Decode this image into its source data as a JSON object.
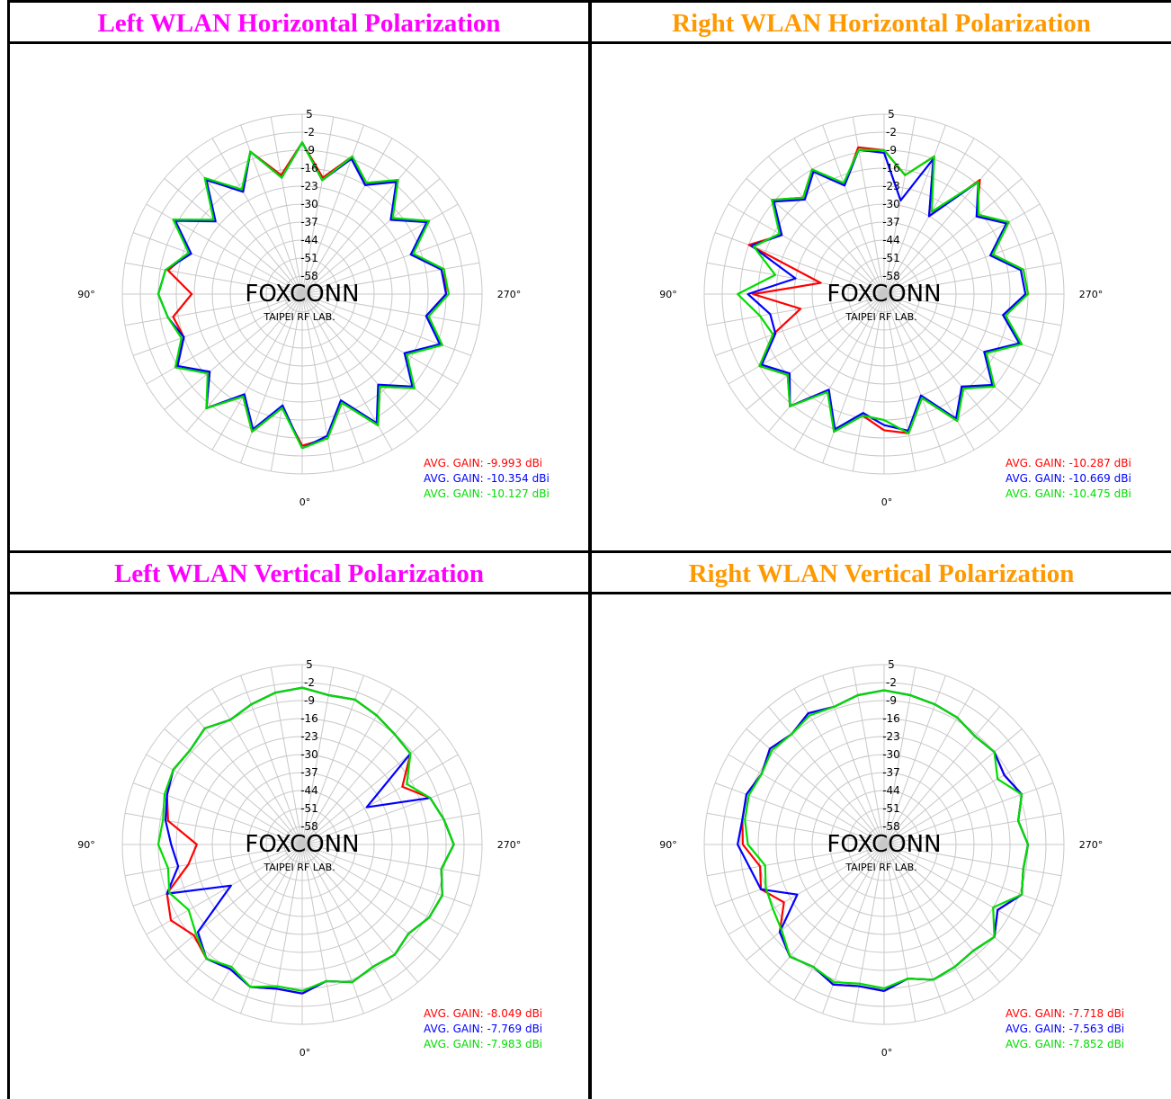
{
  "page": {
    "title_color_left": "#ff00ff",
    "title_color_right": "#ff9900"
  },
  "chart_data": [
    {
      "type": "polar-line",
      "title": "Left WLAN Horizontal Polarization",
      "radial_ticks": [
        "5",
        "-2",
        "-9",
        "-16",
        "-23",
        "-30",
        "-37",
        "-44",
        "-51",
        "-58"
      ],
      "angle_labels": {
        "bottom": "0°",
        "left": "90°",
        "right": "270°"
      },
      "watermark": {
        "main": "FOXCONN",
        "sub": "TAIPEI RF LAB."
      },
      "rlim": [
        -65,
        5
      ],
      "series": [
        {
          "color": "#ff0000",
          "avg_label": "AVG. GAIN: -9.993 dBi",
          "angles": [
            0,
            10,
            20,
            30,
            40,
            50,
            60,
            70,
            80,
            90,
            100,
            110,
            120,
            130,
            140,
            150,
            160,
            170,
            180,
            190,
            200,
            210,
            220,
            230,
            240,
            250,
            260,
            270,
            280,
            290,
            300,
            310,
            320,
            330,
            340,
            350
          ],
          "values": [
            -6,
            -20,
            -8,
            -19,
            -7,
            -18,
            -8,
            -16,
            -14,
            -22,
            -12,
            -18,
            -8,
            -20,
            -7,
            -19,
            -6,
            -18,
            -6,
            -19,
            -8,
            -16,
            -7,
            -20,
            -8,
            -20,
            -9,
            -9,
            -16,
            -7,
            -19,
            -8,
            -18,
            -6,
            -20,
            -8
          ]
        },
        {
          "color": "#0000ff",
          "avg_label": "AVG. GAIN: -10.354 dBi",
          "angles": [
            0,
            10,
            20,
            30,
            40,
            50,
            60,
            70,
            80,
            90,
            100,
            110,
            120,
            130,
            140,
            150,
            160,
            170,
            180,
            190,
            200,
            210,
            220,
            230,
            240,
            250,
            260,
            270,
            280,
            290,
            300,
            310,
            320,
            330,
            340,
            350
          ],
          "values": [
            -5,
            -21,
            -9,
            -20,
            -7,
            -18,
            -9,
            -16,
            -12,
            -9,
            -11,
            -19,
            -8,
            -21,
            -7,
            -19,
            -6,
            -19,
            -6,
            -20,
            -9,
            -16,
            -8,
            -20,
            -9,
            -20,
            -10,
            -9,
            -16,
            -8,
            -19,
            -9,
            -19,
            -7,
            -21,
            -9
          ]
        },
        {
          "color": "#00dd00",
          "avg_label": "AVG. GAIN: -10.127 dBi",
          "angles": [
            0,
            10,
            20,
            30,
            40,
            50,
            60,
            70,
            80,
            90,
            100,
            110,
            120,
            130,
            140,
            150,
            160,
            170,
            180,
            190,
            200,
            210,
            220,
            230,
            240,
            250,
            260,
            270,
            280,
            290,
            300,
            310,
            320,
            330,
            340,
            350
          ],
          "values": [
            -5,
            -20,
            -8,
            -19,
            -7,
            -17,
            -8,
            -15,
            -12,
            -9,
            -11,
            -18,
            -7,
            -20,
            -6,
            -18,
            -6,
            -19,
            -6,
            -20,
            -8,
            -15,
            -7,
            -19,
            -8,
            -19,
            -9,
            -8,
            -15,
            -7,
            -18,
            -8,
            -18,
            -6,
            -20,
            -8
          ]
        }
      ]
    },
    {
      "type": "polar-line",
      "title": "Right WLAN Horizontal Polarization",
      "radial_ticks": [
        "5",
        "-2",
        "-9",
        "-16",
        "-23",
        "-30",
        "-37",
        "-44",
        "-51",
        "-58"
      ],
      "angle_labels": {
        "bottom": "0°",
        "left": "90°",
        "right": "270°"
      },
      "watermark": {
        "main": "FOXCONN",
        "sub": "TAIPEI RF LAB."
      },
      "rlim": [
        -65,
        5
      ],
      "series": [
        {
          "color": "#ff0000",
          "avg_label": "AVG. GAIN: -10.287 dBi",
          "angles": [
            0,
            10,
            20,
            30,
            40,
            50,
            60,
            70,
            80,
            90,
            100,
            110,
            120,
            130,
            140,
            150,
            160,
            170,
            180,
            190,
            200,
            210,
            220,
            230,
            240,
            250,
            260,
            270,
            280,
            290,
            300,
            310,
            320,
            330,
            340,
            350
          ],
          "values": [
            -12,
            -17,
            -8,
            -22,
            -8,
            -16,
            -9,
            -19,
            -32,
            -14,
            -40,
            -9,
            -19,
            -8,
            -16,
            -9,
            -20,
            -7,
            -9,
            -18,
            -8,
            -30,
            -7,
            -18,
            -9,
            -20,
            -10,
            -9,
            -18,
            -8,
            -20,
            -9,
            -18,
            -8,
            -22,
            -10
          ]
        },
        {
          "color": "#0000ff",
          "avg_label": "AVG. GAIN: -10.669 dBi",
          "angles": [
            0,
            10,
            20,
            30,
            40,
            50,
            60,
            70,
            80,
            90,
            100,
            110,
            120,
            130,
            140,
            150,
            160,
            170,
            180,
            190,
            200,
            210,
            220,
            230,
            240,
            250,
            260,
            270,
            280,
            290,
            300,
            310,
            320,
            330,
            340,
            350
          ],
          "values": [
            -14,
            -18,
            -9,
            -22,
            -8,
            -17,
            -10,
            -20,
            -20,
            -12,
            -30,
            -10,
            -19,
            -9,
            -17,
            -10,
            -20,
            -8,
            -10,
            -28,
            -9,
            -30,
            -8,
            -18,
            -10,
            -21,
            -11,
            -10,
            -18,
            -9,
            -20,
            -10,
            -18,
            -9,
            -23,
            -11
          ]
        },
        {
          "color": "#00dd00",
          "avg_label": "AVG. GAIN: -10.475 dBi",
          "angles": [
            0,
            10,
            20,
            30,
            40,
            50,
            60,
            70,
            80,
            90,
            100,
            110,
            120,
            130,
            140,
            150,
            160,
            170,
            180,
            190,
            200,
            210,
            220,
            230,
            240,
            250,
            260,
            270,
            280,
            290,
            300,
            310,
            320,
            330,
            340,
            350
          ],
          "values": [
            -16,
            -17,
            -8,
            -21,
            -8,
            -16,
            -9,
            -19,
            -16,
            -8,
            -22,
            -11,
            -18,
            -8,
            -16,
            -9,
            -19,
            -8,
            -9,
            -18,
            -8,
            -28,
            -8,
            -17,
            -9,
            -20,
            -10,
            -9,
            -17,
            -8,
            -19,
            -9,
            -17,
            -8,
            -22,
            -10
          ]
        }
      ]
    },
    {
      "type": "polar-line",
      "title": "Left WLAN Vertical Polarization",
      "radial_ticks": [
        "5",
        "-2",
        "-9",
        "-16",
        "-23",
        "-30",
        "-37",
        "-44",
        "-51",
        "-58"
      ],
      "angle_labels": {
        "bottom": "0°",
        "left": "90°",
        "right": "270°"
      },
      "watermark": {
        "main": "FOXCONN",
        "sub": "TAIPEI RF LAB."
      },
      "rlim": [
        -65,
        5
      ],
      "series": [
        {
          "color": "#ff0000",
          "avg_label": "AVG. GAIN: -8.049 dBi",
          "angles": [
            0,
            10,
            20,
            30,
            40,
            50,
            60,
            70,
            80,
            90,
            100,
            110,
            120,
            130,
            140,
            150,
            160,
            170,
            180,
            190,
            200,
            210,
            220,
            230,
            240,
            250,
            260,
            270,
            280,
            290,
            300,
            310,
            320,
            330,
            340,
            350
          ],
          "values": [
            -7,
            -8,
            -6,
            -9,
            -7,
            -10,
            -6,
            -9,
            -20,
            -24,
            -12,
            -9,
            -7,
            -8,
            -6,
            -9,
            -7,
            -5,
            -4,
            -6,
            -5,
            -7,
            -9,
            -10,
            -20,
            -12,
            -9,
            -6,
            -10,
            -7,
            -8,
            -11,
            -9,
            -10,
            -8,
            -11
          ]
        },
        {
          "color": "#0000ff",
          "avg_label": "AVG. GAIN: -7.769 dBi",
          "angles": [
            0,
            10,
            20,
            30,
            40,
            50,
            60,
            70,
            80,
            90,
            100,
            110,
            120,
            130,
            140,
            150,
            160,
            170,
            180,
            190,
            200,
            210,
            220,
            230,
            240,
            250,
            260,
            270,
            280,
            290,
            300,
            310,
            320,
            330,
            340,
            350
          ],
          "values": [
            -7,
            -8,
            -6,
            -9,
            -7,
            -12,
            -33,
            -9,
            -16,
            -14,
            -11,
            -9,
            -7,
            -8,
            -6,
            -9,
            -7,
            -5,
            -4,
            -6,
            -5,
            -7,
            -9,
            -10,
            -36,
            -12,
            -9,
            -6,
            -10,
            -7,
            -8,
            -11,
            -9,
            -10,
            -8,
            -11
          ]
        },
        {
          "color": "#00dd00",
          "avg_label": "AVG. GAIN: -7.983 dBi",
          "angles": [
            0,
            10,
            20,
            30,
            40,
            50,
            60,
            70,
            80,
            90,
            100,
            110,
            120,
            130,
            140,
            150,
            160,
            170,
            180,
            190,
            200,
            210,
            220,
            230,
            240,
            250,
            260,
            270,
            280,
            290,
            300,
            310,
            320,
            330,
            340,
            350
          ],
          "values": [
            -8,
            -9,
            -6,
            -10,
            -7,
            -11,
            -14,
            -10,
            -12,
            -9,
            -10,
            -8,
            -7,
            -8,
            -6,
            -9,
            -7,
            -5,
            -4,
            -6,
            -5,
            -7,
            -9,
            -10,
            -18,
            -12,
            -9,
            -6,
            -10,
            -7,
            -8,
            -11,
            -9,
            -10,
            -8,
            -11
          ]
        }
      ]
    },
    {
      "type": "polar-line",
      "title": "Right WLAN Vertical Polarization",
      "radial_ticks": [
        "5",
        "-2",
        "-9",
        "-16",
        "-23",
        "-30",
        "-37",
        "-44",
        "-51",
        "-58"
      ],
      "angle_labels": {
        "bottom": "0°",
        "left": "90°",
        "right": "270°"
      },
      "watermark": {
        "main": "FOXCONN",
        "sub": "TAIPEI RF LAB."
      },
      "rlim": [
        -65,
        5
      ],
      "series": [
        {
          "color": "#ff0000",
          "avg_label": "AVG. GAIN: -7.718 dBi",
          "angles": [
            0,
            10,
            20,
            30,
            40,
            50,
            60,
            70,
            80,
            90,
            100,
            110,
            120,
            130,
            140,
            150,
            160,
            170,
            180,
            190,
            200,
            210,
            220,
            230,
            240,
            250,
            260,
            270,
            280,
            290,
            300,
            310,
            320,
            330,
            340,
            350
          ],
          "values": [
            -8,
            -9,
            -7,
            -10,
            -8,
            -12,
            -20,
            -14,
            -16,
            -10,
            -9,
            -8,
            -10,
            -7,
            -9,
            -6,
            -8,
            -6,
            -5,
            -6,
            -7,
            -8,
            -10,
            -9,
            -11,
            -8,
            -12,
            -9,
            -10,
            -8,
            -14,
            -9,
            -11,
            -10,
            -9,
            -12
          ]
        },
        {
          "color": "#0000ff",
          "avg_label": "AVG. GAIN: -7.563 dBi",
          "angles": [
            0,
            10,
            20,
            30,
            40,
            50,
            60,
            70,
            80,
            90,
            100,
            110,
            120,
            130,
            140,
            150,
            160,
            170,
            180,
            190,
            200,
            210,
            220,
            230,
            240,
            250,
            260,
            270,
            280,
            290,
            300,
            310,
            320,
            330,
            340,
            350
          ],
          "values": [
            -8,
            -9,
            -7,
            -10,
            -8,
            -12,
            -26,
            -14,
            -12,
            -8,
            -9,
            -8,
            -10,
            -7,
            -9,
            -6,
            -8,
            -6,
            -5,
            -6,
            -7,
            -8,
            -10,
            -9,
            -11,
            -8,
            -12,
            -9,
            -10,
            -8,
            -14,
            -9,
            -11,
            -10,
            -9,
            -12
          ]
        },
        {
          "color": "#00dd00",
          "avg_label": "AVG. GAIN: -7.852 dBi",
          "angles": [
            0,
            10,
            20,
            30,
            40,
            50,
            60,
            70,
            80,
            90,
            100,
            110,
            120,
            130,
            140,
            150,
            160,
            170,
            180,
            190,
            200,
            210,
            220,
            230,
            240,
            250,
            260,
            270,
            280,
            290,
            300,
            310,
            320,
            330,
            340,
            350
          ],
          "values": [
            -9,
            -10,
            -8,
            -10,
            -8,
            -13,
            -15,
            -16,
            -18,
            -12,
            -10,
            -9,
            -10,
            -8,
            -9,
            -7,
            -8,
            -6,
            -5,
            -6,
            -7,
            -8,
            -10,
            -9,
            -14,
            -8,
            -12,
            -9,
            -10,
            -8,
            -16,
            -9,
            -11,
            -10,
            -9,
            -12
          ]
        }
      ]
    }
  ]
}
